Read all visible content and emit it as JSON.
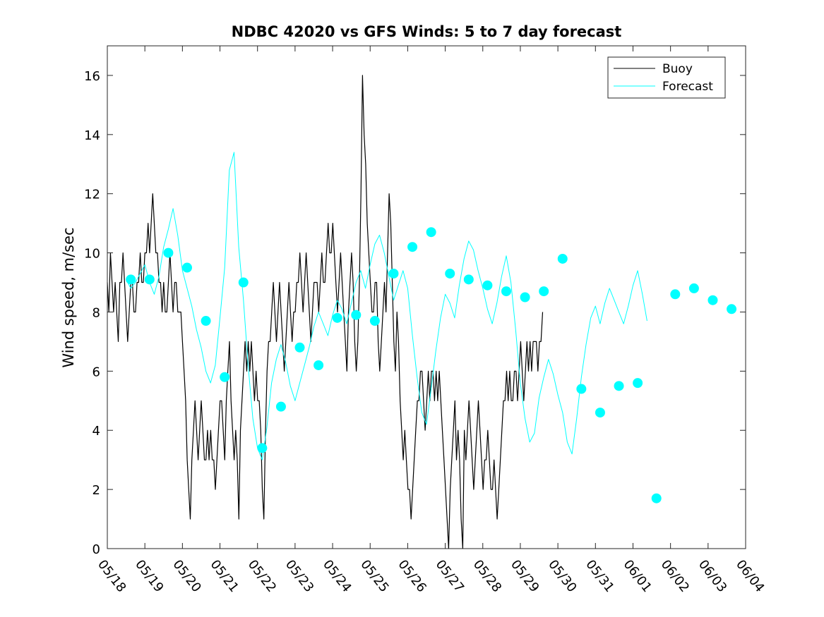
{
  "chart_data": {
    "type": "line",
    "title": "NDBC 42020 vs GFS Winds: 5 to 7 day forecast",
    "xlabel": "",
    "ylabel": "Wind speed, m/sec",
    "xlim": [
      "05/18",
      "06/04"
    ],
    "ylim": [
      0,
      17
    ],
    "x_tick_labels": [
      "05/18",
      "05/19",
      "05/20",
      "05/21",
      "05/22",
      "05/23",
      "05/24",
      "05/25",
      "05/26",
      "05/27",
      "05/28",
      "05/29",
      "05/30",
      "05/31",
      "06/01",
      "06/02",
      "06/03",
      "06/04"
    ],
    "y_ticks": [
      0,
      2,
      4,
      6,
      8,
      10,
      12,
      14,
      16
    ],
    "y_tick_labels": [
      "0",
      "2",
      "4",
      "6",
      "8",
      "10",
      "12",
      "14",
      "16"
    ],
    "legend": {
      "position": "top-right",
      "entries": [
        "Buoy",
        "Forecast"
      ]
    },
    "colors": {
      "buoy": "#000000",
      "forecast": "#00ffff"
    },
    "series": [
      {
        "name": "Buoy",
        "type": "line",
        "day_offset_start": 0,
        "day_step": 0.0417,
        "values": [
          9,
          8,
          10,
          9,
          8,
          9,
          8,
          7,
          9,
          9,
          10,
          9,
          8,
          7,
          8,
          9,
          9,
          8,
          8,
          9,
          9,
          10,
          9,
          9,
          10,
          10,
          11,
          10,
          11,
          12,
          11,
          10,
          10,
          9,
          9,
          8,
          9,
          8,
          8,
          9,
          10,
          9,
          8,
          9,
          9,
          8,
          8,
          8,
          7,
          6,
          5,
          3,
          2,
          1,
          3,
          4,
          5,
          4,
          3,
          4,
          5,
          4,
          3,
          3,
          4,
          3,
          4,
          3,
          3,
          2,
          3,
          4,
          5,
          5,
          4,
          3,
          5,
          6,
          7,
          5,
          4,
          3,
          4,
          3,
          1,
          4,
          5,
          6,
          7,
          6,
          7,
          6,
          7,
          6,
          5,
          6,
          5,
          5,
          4,
          2,
          1,
          4,
          6,
          7,
          7,
          8,
          9,
          8,
          7,
          8,
          9,
          8,
          7,
          6,
          7,
          8,
          9,
          8,
          7,
          8,
          8,
          9,
          9,
          10,
          9,
          8,
          9,
          10,
          9,
          8,
          7,
          8,
          9,
          9,
          9,
          8,
          9,
          10,
          9,
          9,
          10,
          11,
          10,
          10,
          11,
          10,
          9,
          8,
          9,
          10,
          9,
          8,
          7,
          6,
          8,
          9,
          10,
          9,
          7,
          6,
          7,
          9,
          12,
          16,
          14,
          13,
          11,
          10,
          9,
          8,
          8,
          9,
          9,
          7,
          6,
          7,
          8,
          9,
          8,
          10,
          12,
          11,
          9,
          7,
          6,
          8,
          7,
          5,
          4,
          3,
          4,
          3,
          2,
          2,
          1,
          2,
          3,
          4,
          5,
          5,
          6,
          6,
          5,
          4,
          5,
          6,
          5,
          6,
          6,
          5,
          6,
          5,
          6,
          5,
          4,
          3,
          2,
          1,
          0,
          2,
          3,
          4,
          5,
          3,
          4,
          3,
          1,
          0,
          4,
          3,
          4,
          5,
          4,
          3,
          2,
          3,
          4,
          5,
          4,
          3,
          2,
          3,
          3,
          4,
          3,
          2,
          2,
          3,
          2,
          1,
          2,
          3,
          4,
          5,
          5,
          6,
          5,
          6,
          5,
          5,
          6,
          6,
          5,
          6,
          7,
          6,
          5,
          6,
          7,
          6,
          7,
          6,
          7,
          7,
          7,
          6,
          7,
          7,
          8
        ]
      },
      {
        "name": "Forecast",
        "type": "line",
        "note_style": "ensemble of forecast traces",
        "day_offset_start": 0.5,
        "day_step": 0.125,
        "values": [
          9.1,
          8.8,
          9.0,
          9.3,
          9.6,
          9.0,
          8.6,
          9.2,
          10.2,
          10.8,
          11.5,
          10.6,
          9.4,
          8.8,
          8.2,
          7.4,
          6.8,
          6.0,
          5.6,
          6.2,
          7.8,
          9.5,
          12.8,
          13.4,
          10.2,
          8.4,
          6.2,
          4.4,
          3.4,
          3.0,
          4.1,
          5.6,
          6.4,
          6.9,
          6.3,
          5.5,
          5.0,
          5.6,
          6.2,
          6.8,
          7.5,
          8.0,
          7.6,
          7.2,
          7.9,
          8.4,
          8.1,
          7.6,
          8.3,
          9.0,
          9.4,
          8.8,
          9.6,
          10.3,
          10.6,
          10.0,
          9.2,
          8.4,
          8.9,
          9.4,
          8.8,
          7.2,
          5.8,
          4.6,
          4.2,
          5.4,
          6.7,
          7.8,
          8.6,
          8.3,
          7.8,
          8.9,
          9.8,
          10.4,
          10.1,
          9.4,
          8.8,
          8.1,
          7.6,
          8.3,
          9.2,
          9.9,
          9.0,
          7.4,
          5.6,
          4.4,
          3.6,
          3.9,
          5.1,
          5.8,
          6.4,
          5.9,
          5.2,
          4.6,
          3.6,
          3.2,
          4.4,
          5.8,
          6.9,
          7.8,
          8.2,
          7.6,
          8.3,
          8.8,
          8.4,
          8.0,
          7.6,
          8.2,
          8.9,
          9.4,
          8.6,
          7.7
        ]
      },
      {
        "name": "",
        "type": "markers",
        "marker": "filled-circle",
        "color": "#00ffff",
        "x": [
          "05/18 15:00",
          "05/19 03:00",
          "05/19 15:00",
          "05/20 03:00",
          "05/20 15:00",
          "05/21 03:00",
          "05/21 15:00",
          "05/22 03:00",
          "05/22 15:00",
          "05/23 03:00",
          "05/23 15:00",
          "05/24 03:00",
          "05/24 15:00",
          "05/25 03:00",
          "05/25 15:00",
          "05/26 03:00",
          "05/26 15:00",
          "05/27 03:00",
          "05/27 15:00",
          "05/28 03:00",
          "05/28 15:00",
          "05/29 03:00",
          "05/29 15:00",
          "05/30 03:00",
          "05/30 15:00",
          "05/31 03:00",
          "05/31 15:00",
          "06/01 03:00",
          "06/01 15:00",
          "06/02 03:00",
          "06/02 15:00",
          "06/03 03:00",
          "06/03 15:00"
        ],
        "values": [
          9.1,
          9.1,
          10.0,
          9.5,
          7.7,
          5.8,
          9.0,
          3.4,
          4.8,
          6.8,
          6.2,
          7.8,
          7.9,
          7.7,
          9.3,
          10.2,
          10.7,
          9.3,
          9.1,
          8.9,
          8.7,
          8.5,
          8.7,
          9.8,
          5.4,
          4.6,
          5.5,
          5.6,
          1.7,
          8.6,
          8.8,
          8.4,
          8.1
        ]
      }
    ]
  }
}
